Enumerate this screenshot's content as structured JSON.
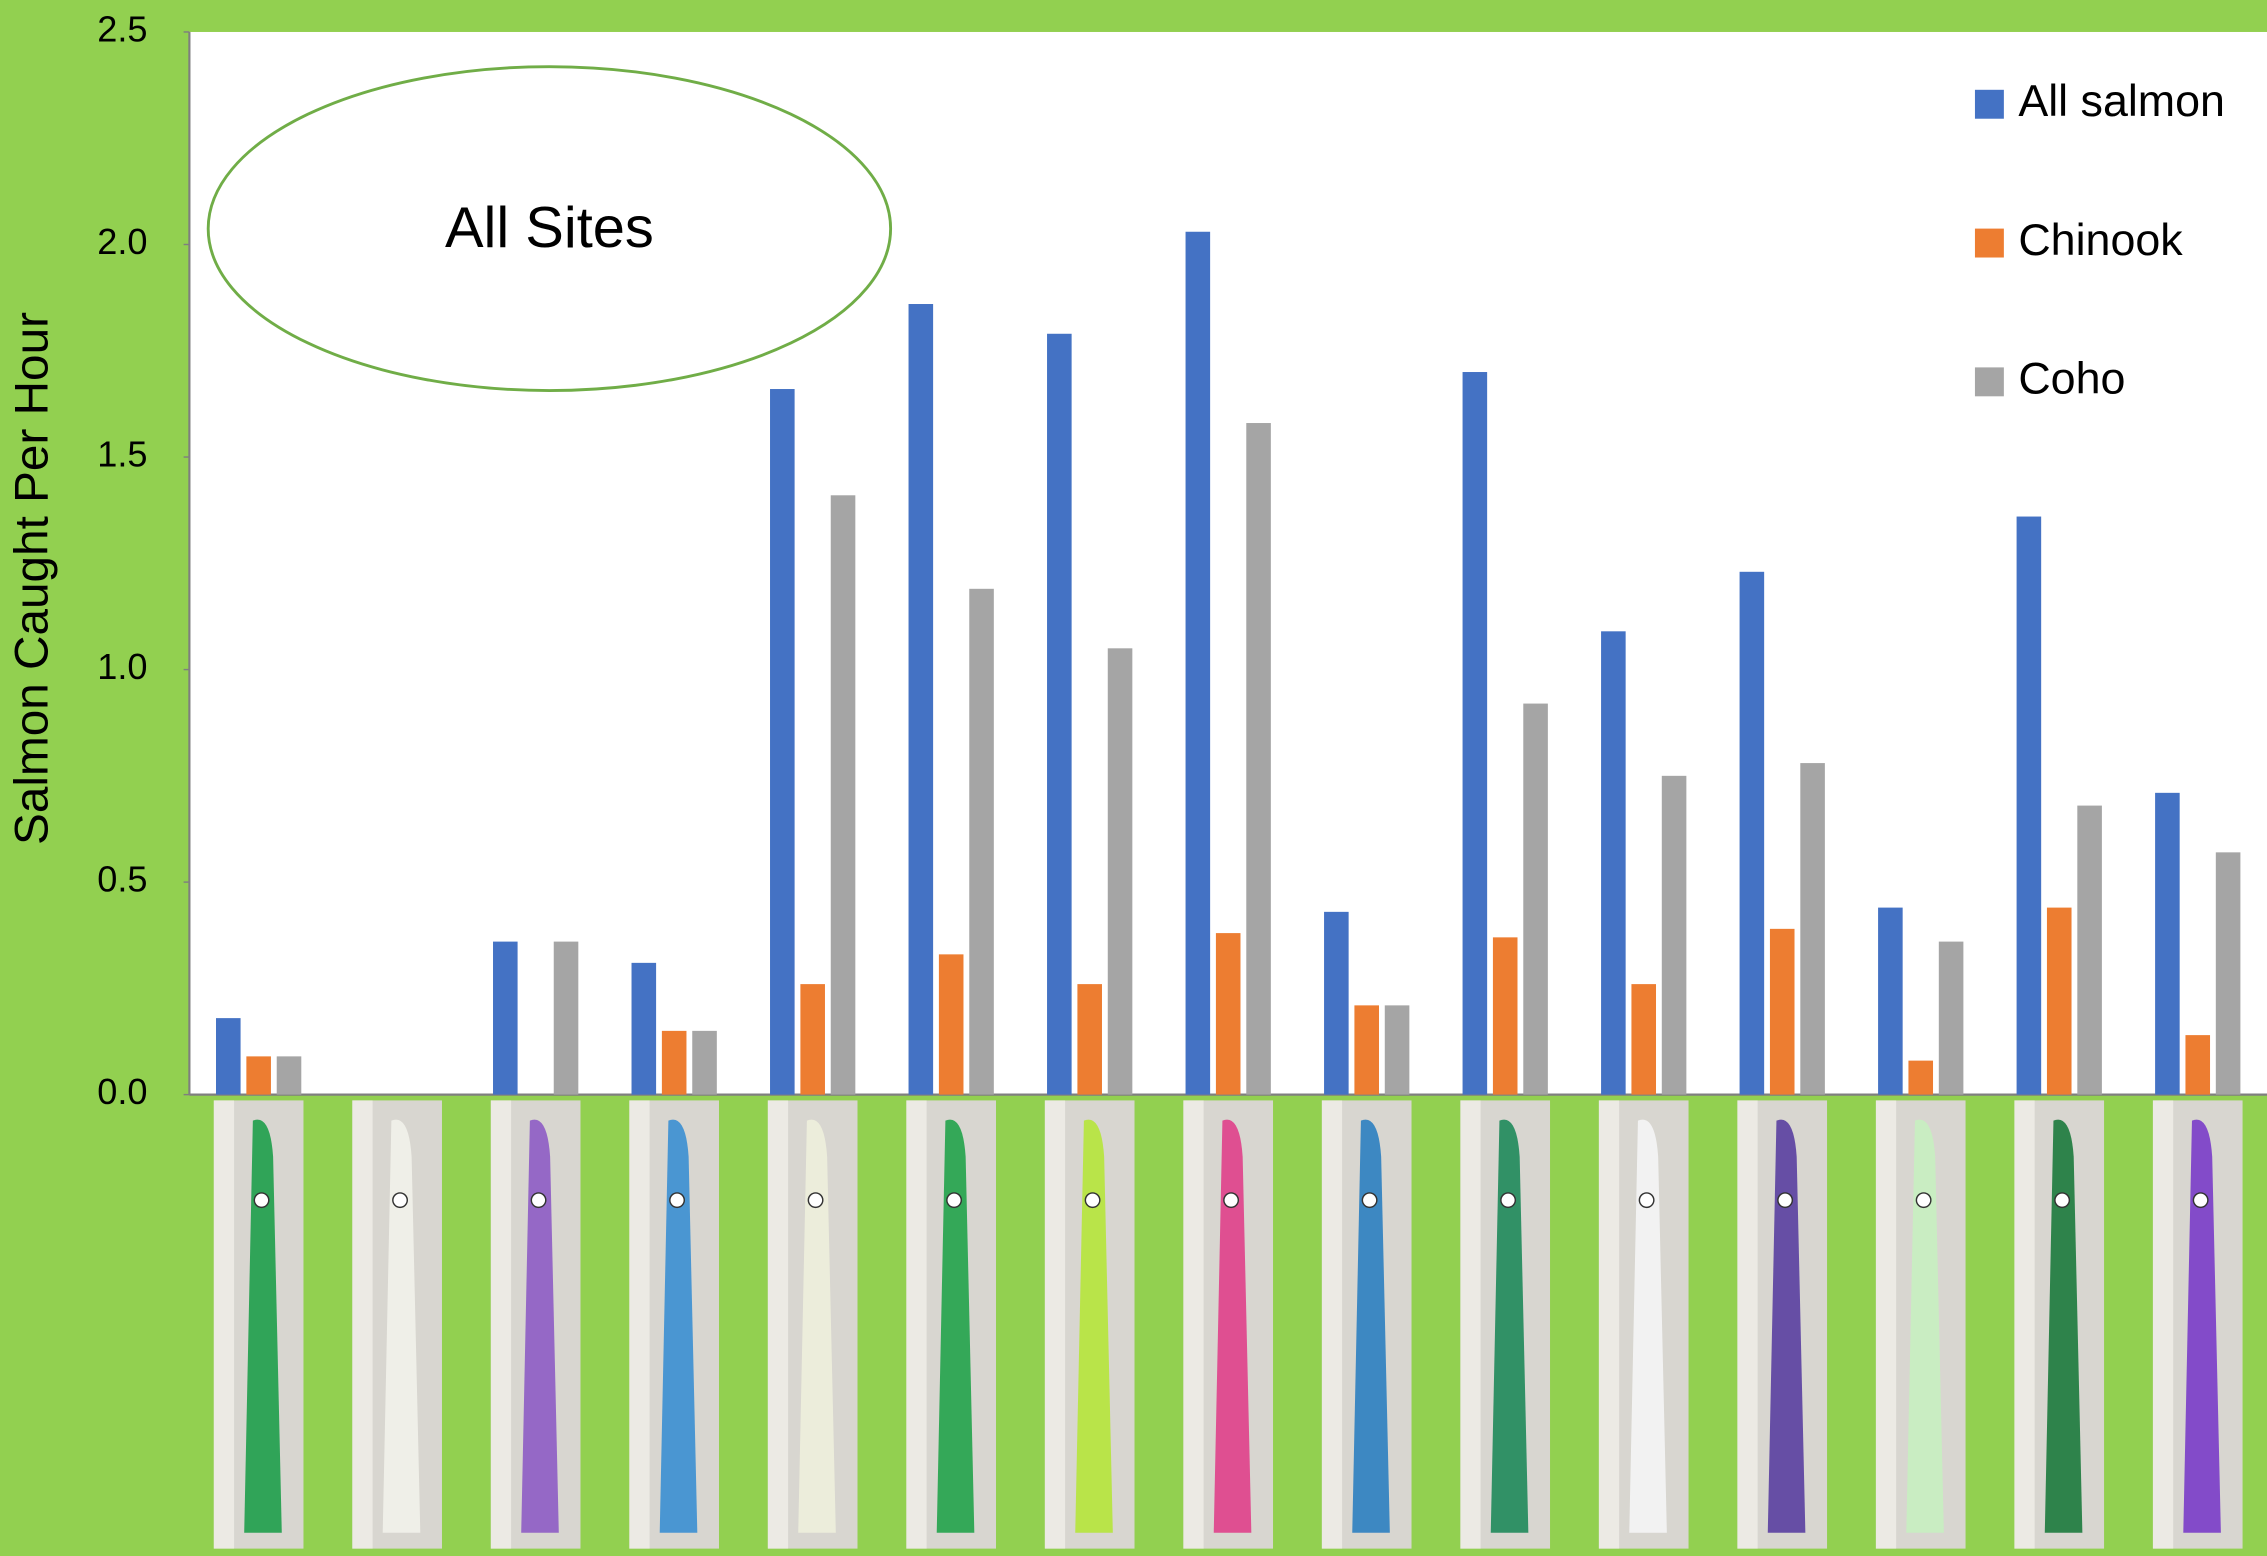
{
  "chart_data": {
    "type": "bar",
    "annotation": "All Sites",
    "y_label": "Salmon Caught Per Hour",
    "categories": [
      null,
      null,
      null,
      null,
      null,
      null,
      null,
      null,
      null,
      null,
      null,
      null,
      null,
      null,
      null
    ],
    "series": [
      {
        "name": "All salmon",
        "color": "#4472c4",
        "values": [
          0.18,
          0,
          0.36,
          0.31,
          1.66,
          1.86,
          1.79,
          2.03,
          0.43,
          1.7,
          1.09,
          1.23,
          0.44,
          1.36,
          0.71
        ]
      },
      {
        "name": "Chinook",
        "color": "#ed7d31",
        "values": [
          0.09,
          0,
          0,
          0.15,
          0.26,
          0.33,
          0.26,
          0.38,
          0.21,
          0.37,
          0.26,
          0.39,
          0.08,
          0.44,
          0.14
        ]
      },
      {
        "name": "Coho",
        "color": "#a5a5a5",
        "values": [
          0.09,
          0,
          0.36,
          0.15,
          1.41,
          1.19,
          1.05,
          1.58,
          0.21,
          0.92,
          0.75,
          0.78,
          0.36,
          0.68,
          0.57
        ]
      }
    ],
    "ylim": [
      0,
      2.5
    ],
    "yticks": [
      {
        "value": 0,
        "label": "0.0"
      },
      0.5,
      {
        "value": 1,
        "label": "1.0"
      },
      1.5,
      {
        "value": 2,
        "label": "2.0"
      },
      2.5
    ],
    "grid": false,
    "legend": "upper right"
  }
}
